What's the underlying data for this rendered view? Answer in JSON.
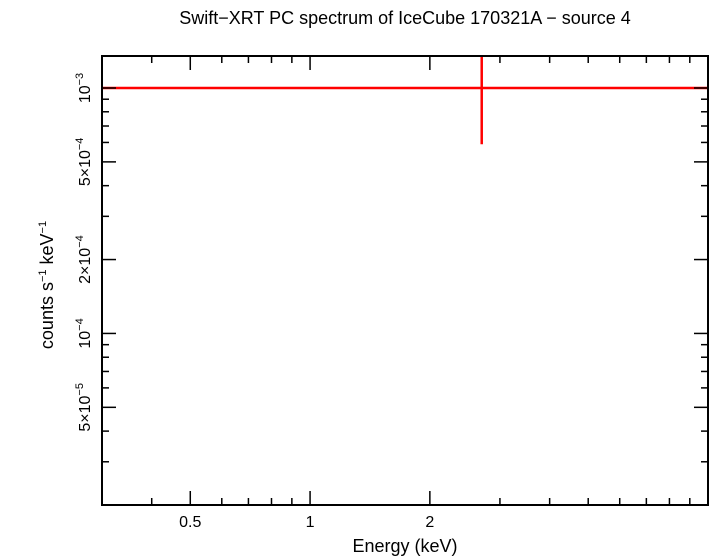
{
  "chart_data": {
    "type": "scatter",
    "title": "Swift−XRT PC spectrum of IceCube 170321A − source 4",
    "xlabel": "Energy (keV)",
    "ylabel": {
      "base": "counts s",
      "sup1": "−1",
      "middle": " keV",
      "sup2": "−1"
    },
    "xscale": "log",
    "yscale": "log",
    "xlim": [
      0.3,
      10
    ],
    "ylim": [
      2e-05,
      0.00135
    ],
    "x_ticks": [
      {
        "value": 0.5,
        "label": "0.5"
      },
      {
        "value": 1,
        "label": "1"
      },
      {
        "value": 2,
        "label": "2"
      }
    ],
    "y_ticks": [
      {
        "value": 0.001,
        "mantissa": "10",
        "exp": "−3"
      },
      {
        "value": 0.0005,
        "mantissa": "5×10",
        "exp": "−4"
      },
      {
        "value": 0.0002,
        "mantissa": "2×10",
        "exp": "−4"
      },
      {
        "value": 0.0001,
        "mantissa": "10",
        "exp": "−4"
      },
      {
        "value": 5e-05,
        "mantissa": "5×10",
        "exp": "−5"
      }
    ],
    "series": [
      {
        "name": "model",
        "style": "line",
        "color": "#ff0000",
        "points": [
          {
            "x": 0.3,
            "y": 0.001
          },
          {
            "x": 10,
            "y": 0.001
          }
        ]
      },
      {
        "name": "data",
        "style": "errorbar",
        "color": "#ff0000",
        "points": [
          {
            "x": 2.7,
            "y": 0.001,
            "x_low": 2.7,
            "x_high": 2.7,
            "y_low": 0.00059,
            "y_high": 0.00135
          }
        ]
      }
    ],
    "grid": false,
    "legend": "none"
  }
}
